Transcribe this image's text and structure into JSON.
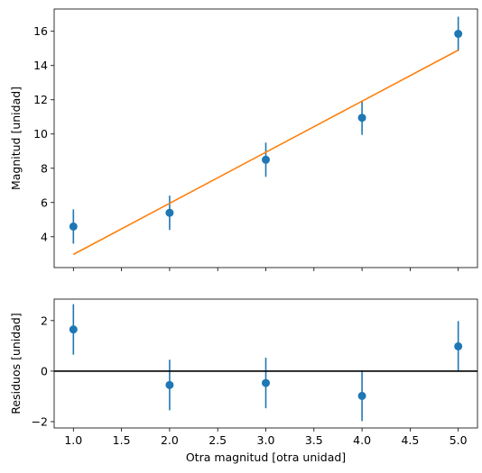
{
  "chart_data": [
    {
      "type": "scatter",
      "ylabel": "Magnitud [unidad]",
      "xlim": [
        0.8,
        5.2
      ],
      "ylim": [
        2.2,
        17.3
      ],
      "xticks": [
        1.0,
        1.5,
        2.0,
        2.5,
        3.0,
        3.5,
        4.0,
        4.5,
        5.0
      ],
      "show_xtick_labels": false,
      "yticks": [
        4,
        6,
        8,
        10,
        12,
        14,
        16
      ],
      "ytick_labels": [
        "4",
        "6",
        "8",
        "10",
        "12",
        "14",
        "16"
      ],
      "grid": false,
      "series": [
        {
          "kind": "errorbar",
          "color": "#1f77b4",
          "x": [
            1,
            2,
            3,
            4,
            5
          ],
          "y": [
            4.6,
            5.4,
            8.5,
            10.95,
            15.85
          ],
          "yerr": [
            1,
            1,
            1,
            1,
            1
          ]
        },
        {
          "kind": "line",
          "color": "#ff7f0e",
          "x": [
            1,
            5
          ],
          "y": [
            2.97,
            14.9
          ]
        }
      ]
    },
    {
      "type": "scatter",
      "xlabel": "Otra magnitud [otra unidad]",
      "ylabel": "Residuos [unidad]",
      "xlim": [
        0.8,
        5.2
      ],
      "ylim": [
        -2.25,
        2.85
      ],
      "xticks": [
        1.0,
        1.5,
        2.0,
        2.5,
        3.0,
        3.5,
        4.0,
        4.5,
        5.0
      ],
      "xtick_labels": [
        "1.0",
        "1.5",
        "2.0",
        "2.5",
        "3.0",
        "3.5",
        "4.0",
        "4.5",
        "5.0"
      ],
      "yticks": [
        -2,
        0,
        2
      ],
      "ytick_labels": [
        "−2",
        "0",
        "2"
      ],
      "grid": false,
      "series": [
        {
          "kind": "errorbar",
          "color": "#1f77b4",
          "x": [
            1,
            2,
            3,
            4,
            5
          ],
          "y": [
            1.65,
            -0.55,
            -0.47,
            -0.98,
            0.98
          ],
          "yerr": [
            1,
            1,
            1,
            1,
            1
          ]
        },
        {
          "kind": "hline",
          "color": "#000000",
          "y": 0
        }
      ]
    }
  ]
}
